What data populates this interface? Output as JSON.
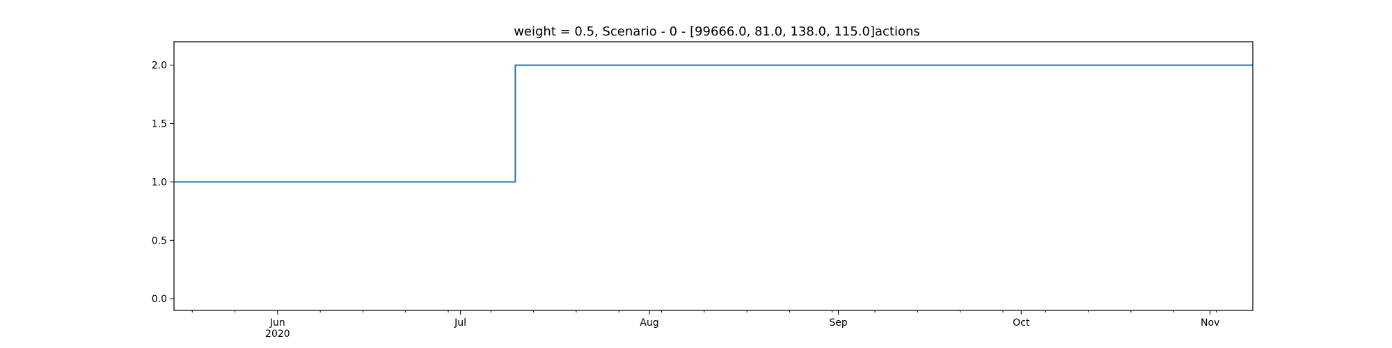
{
  "chart_data": {
    "type": "line",
    "step": "post",
    "title": "weight = 0.5, Scenario - 0 - [99666.0, 81.0, 138.0, 115.0]actions",
    "xlabel": "",
    "ylabel": "",
    "xlim": [
      "2020-05-15",
      "2020-11-08"
    ],
    "ylim": [
      -0.1,
      2.2
    ],
    "x": [
      "2020-05-15",
      "2020-07-10",
      "2020-11-08"
    ],
    "series": [
      {
        "values": [
          1.0,
          2.0,
          2.0
        ],
        "color": "#1f77b4"
      }
    ],
    "y_ticks": [
      "0.0",
      "0.5",
      "1.0",
      "1.5",
      "2.0"
    ],
    "x_ticks": [
      {
        "date": "2020-06-01",
        "label": "Jun",
        "sublabel": "2020"
      },
      {
        "date": "2020-07-01",
        "label": "Jul",
        "sublabel": ""
      },
      {
        "date": "2020-08-01",
        "label": "Aug",
        "sublabel": ""
      },
      {
        "date": "2020-09-01",
        "label": "Sep",
        "sublabel": ""
      },
      {
        "date": "2020-10-01",
        "label": "Oct",
        "sublabel": ""
      },
      {
        "date": "2020-11-01",
        "label": "Nov",
        "sublabel": ""
      }
    ],
    "grid": false,
    "legend": "none"
  }
}
